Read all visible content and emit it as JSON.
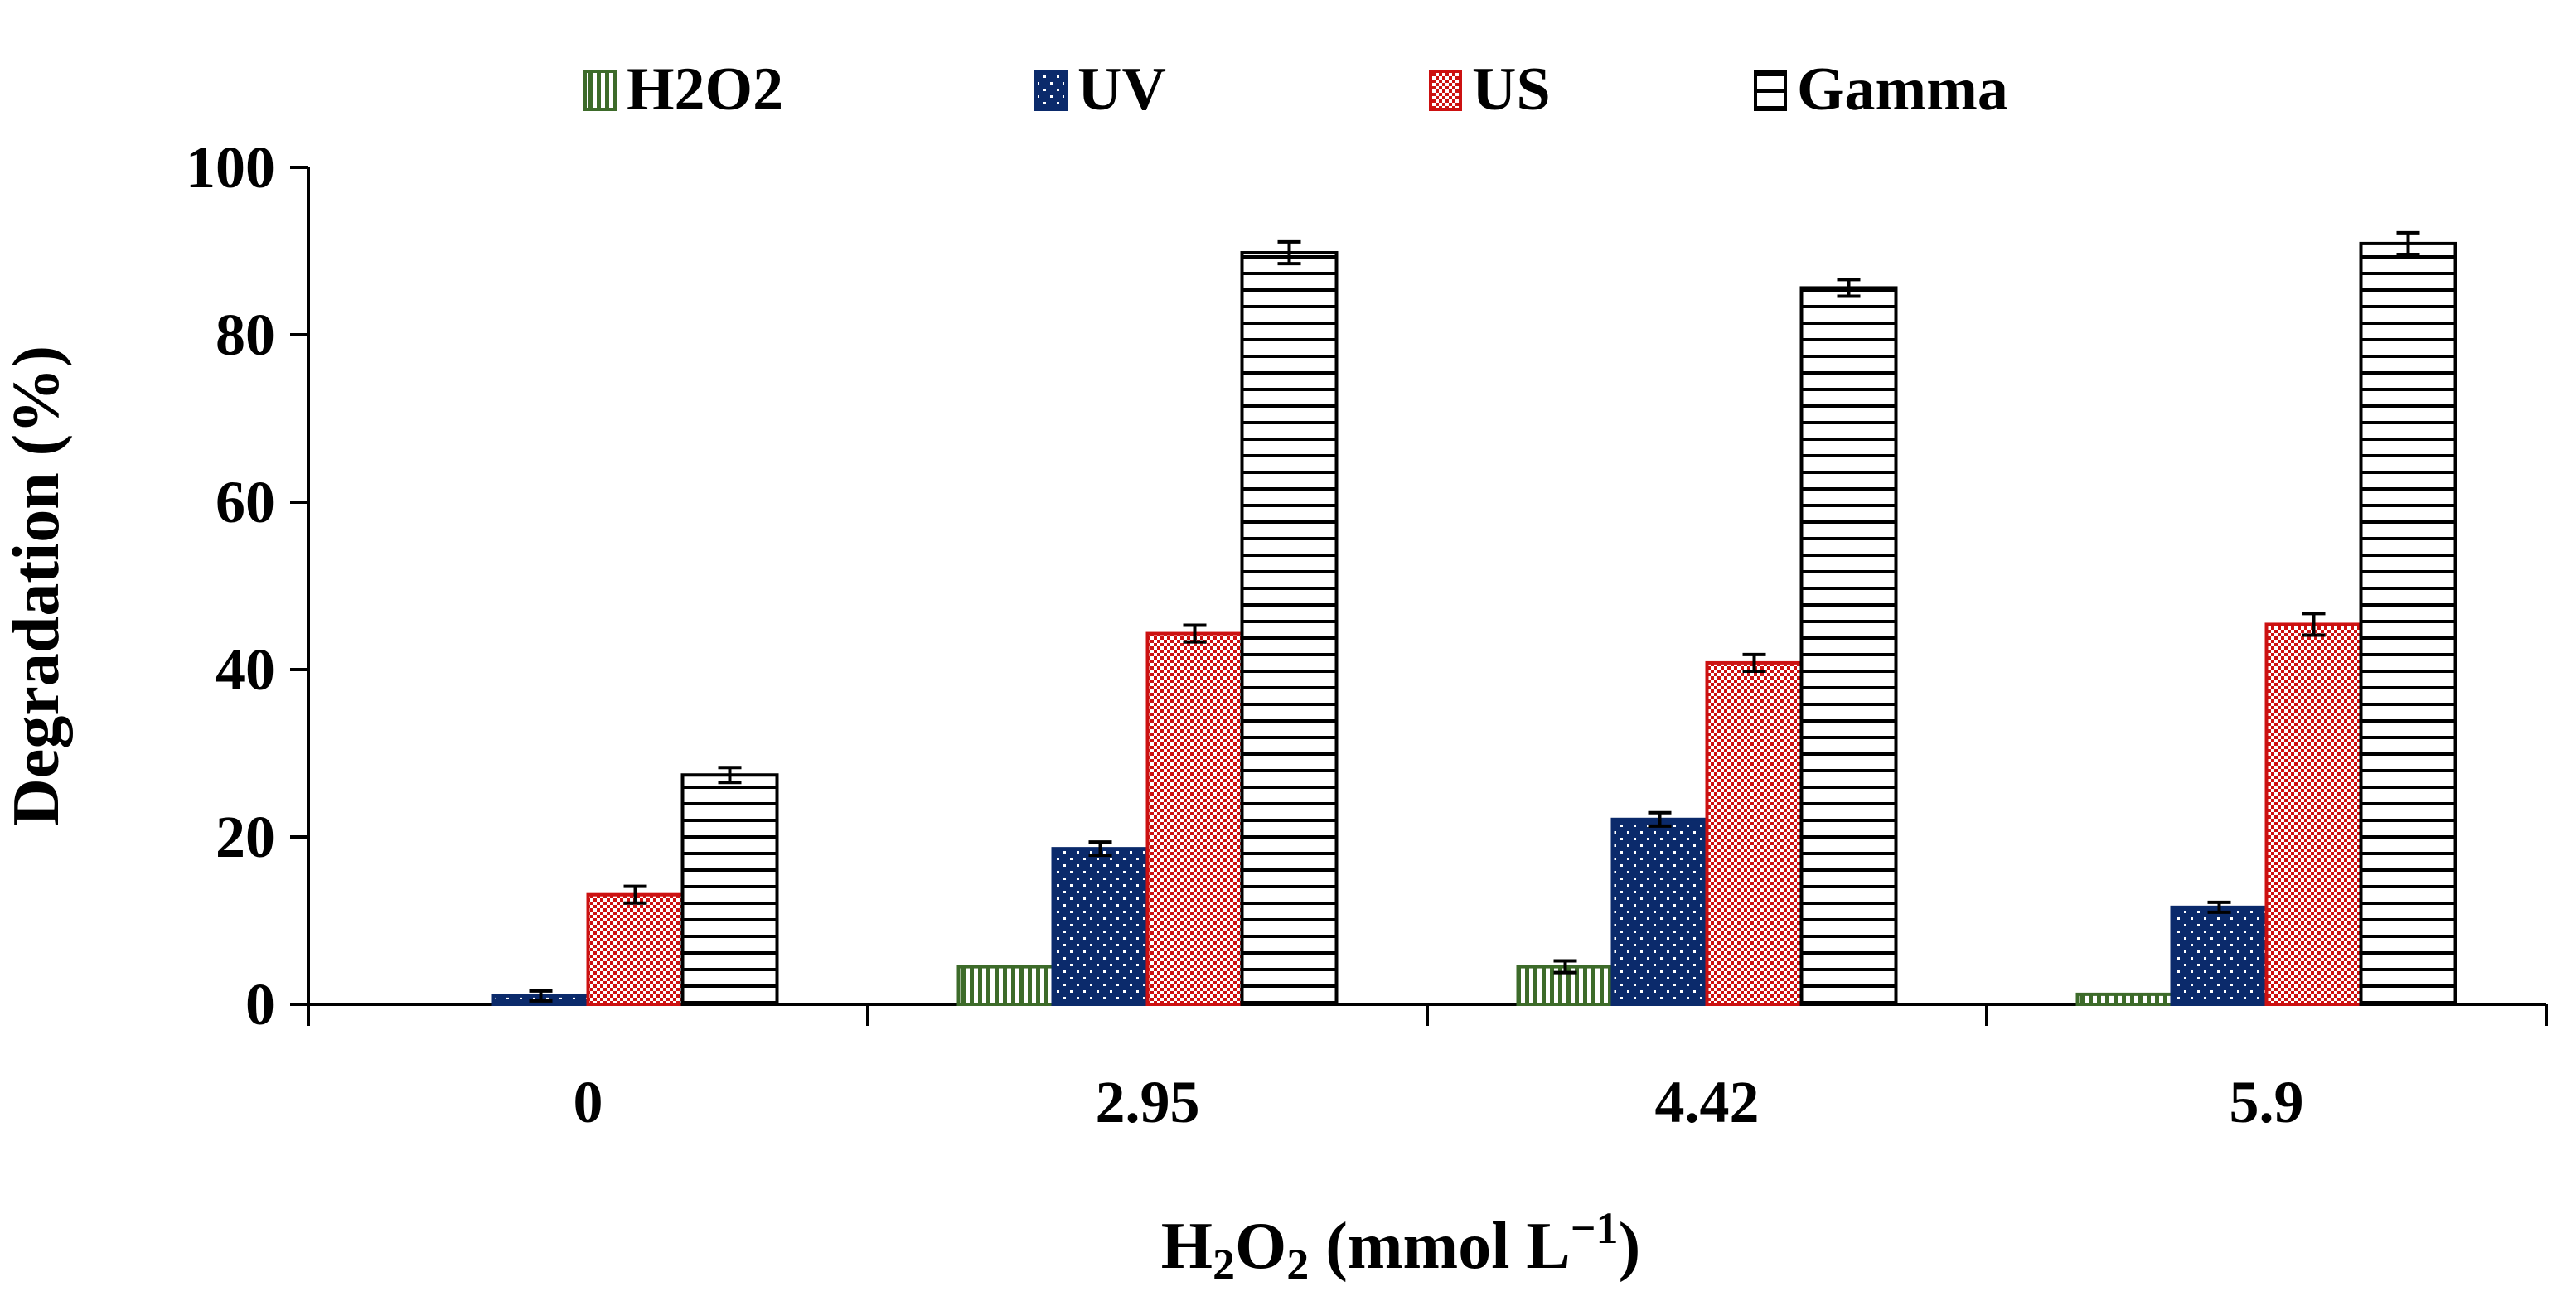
{
  "chart_data": {
    "type": "bar",
    "title": "",
    "xlabel": {
      "main": "H",
      "sub": "2",
      "mid": "O",
      "sub2": "2",
      "rest": " (mmol L",
      "sup": "−1",
      "close": ")"
    },
    "ylabel": "Degradation (%)",
    "ylim": [
      0,
      100
    ],
    "yticks": [
      "0",
      "20",
      "40",
      "60",
      "80",
      "100"
    ],
    "categories": [
      "0",
      "2.95",
      "4.42",
      "5.9"
    ],
    "legend_position": "top-center",
    "grid": false,
    "series": [
      {
        "name": "H2O2",
        "values": [
          0,
          4.5,
          4.5,
          1.2
        ],
        "errors": [
          0,
          0,
          0.3,
          0
        ],
        "color": "#3d6b2a",
        "pattern": "vertical-stripes"
      },
      {
        "name": "UV",
        "values": [
          1.0,
          18.6,
          22.1,
          11.6
        ],
        "errors": [
          0.2,
          0.4,
          0.4,
          0.2
        ],
        "color": "#0b2a6b",
        "pattern": "dots"
      },
      {
        "name": "US",
        "values": [
          13.1,
          44.3,
          40.8,
          45.4
        ],
        "errors": [
          0.6,
          0.6,
          0.6,
          0.9
        ],
        "color": "#cc1111",
        "pattern": "checker"
      },
      {
        "name": "Gamma",
        "values": [
          27.4,
          89.8,
          85.6,
          90.9
        ],
        "errors": [
          0.5,
          0.9,
          0.6,
          0.9
        ],
        "color": "#000000",
        "pattern": "horizontal-stripes"
      }
    ]
  }
}
